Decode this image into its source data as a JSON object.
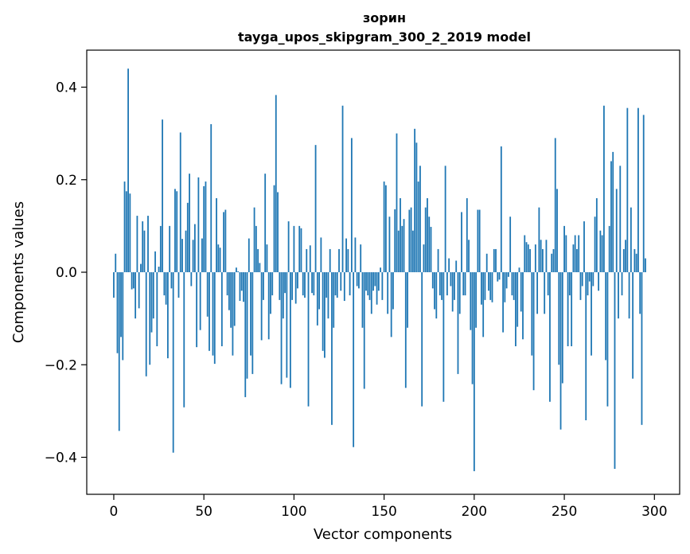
{
  "chart_data": {
    "type": "bar",
    "title_line1": "зорин",
    "title_line2": "tayga_upos_skipgram_300_2_2019 model",
    "xlabel": "Vector components",
    "ylabel": "Components values",
    "xlim": [
      -15,
      314
    ],
    "ylim": [
      -0.48,
      0.48
    ],
    "xticks": [
      0,
      50,
      100,
      150,
      200,
      250,
      300
    ],
    "xtick_labels": [
      "0",
      "50",
      "100",
      "150",
      "200",
      "250",
      "300"
    ],
    "yticks": [
      -0.4,
      -0.2,
      0.0,
      0.2,
      0.4
    ],
    "ytick_labels": [
      "−0.4",
      "−0.2",
      "0.0",
      "0.2",
      "0.4"
    ],
    "bar_color": "#1f77b4",
    "values": [
      -0.055,
      0.04,
      -0.175,
      -0.343,
      -0.14,
      -0.19,
      0.196,
      0.175,
      0.44,
      0.17,
      -0.037,
      -0.035,
      -0.1,
      0.122,
      -0.078,
      0.018,
      0.11,
      0.09,
      -0.225,
      0.122,
      -0.2,
      -0.13,
      -0.1,
      0.045,
      -0.16,
      0.012,
      0.1,
      0.33,
      -0.05,
      -0.07,
      -0.186,
      0.1,
      -0.035,
      -0.39,
      0.18,
      0.175,
      -0.055,
      0.302,
      0.072,
      -0.292,
      0.09,
      0.15,
      0.213,
      -0.03,
      0.07,
      0.104,
      -0.162,
      0.205,
      -0.125,
      0.073,
      0.186,
      0.196,
      -0.096,
      -0.17,
      0.32,
      -0.18,
      -0.198,
      0.16,
      0.06,
      0.053,
      -0.16,
      0.13,
      0.135,
      -0.05,
      -0.082,
      -0.12,
      -0.18,
      -0.116,
      0.01,
      0.002,
      -0.062,
      -0.04,
      -0.064,
      -0.27,
      -0.23,
      0.073,
      -0.18,
      -0.22,
      0.14,
      0.1,
      0.05,
      0.02,
      -0.147,
      -0.06,
      0.213,
      0.06,
      -0.145,
      -0.09,
      -0.05,
      0.188,
      0.383,
      0.173,
      -0.06,
      -0.242,
      -0.1,
      -0.045,
      -0.228,
      0.11,
      -0.25,
      -0.06,
      0.1,
      -0.068,
      -0.035,
      0.1,
      0.095,
      -0.05,
      -0.055,
      0.05,
      -0.29,
      0.058,
      -0.045,
      -0.05,
      0.275,
      -0.115,
      -0.08,
      0.075,
      -0.17,
      -0.185,
      -0.055,
      -0.1,
      0.05,
      -0.33,
      -0.12,
      -0.05,
      -0.055,
      0.05,
      -0.04,
      0.36,
      -0.062,
      0.073,
      0.05,
      -0.05,
      0.29,
      -0.378,
      0.075,
      -0.03,
      -0.035,
      0.06,
      -0.12,
      -0.252,
      -0.04,
      -0.05,
      -0.06,
      -0.09,
      -0.04,
      -0.03,
      -0.07,
      -0.04,
      0.01,
      -0.06,
      0.196,
      0.188,
      -0.09,
      0.12,
      -0.14,
      -0.08,
      0.136,
      0.3,
      0.09,
      0.16,
      0.1,
      0.115,
      -0.25,
      -0.12,
      0.135,
      0.14,
      0.09,
      0.31,
      0.28,
      0.196,
      0.23,
      -0.29,
      0.06,
      0.14,
      0.16,
      0.12,
      0.098,
      -0.035,
      -0.08,
      -0.1,
      0.05,
      -0.05,
      -0.06,
      -0.28,
      0.23,
      -0.05,
      0.03,
      -0.03,
      -0.085,
      -0.06,
      0.025,
      -0.22,
      -0.09,
      0.13,
      -0.05,
      -0.05,
      0.16,
      0.07,
      -0.125,
      -0.242,
      -0.43,
      -0.12,
      0.135,
      0.135,
      -0.07,
      -0.14,
      -0.06,
      0.04,
      -0.04,
      -0.06,
      -0.065,
      0.05,
      0.05,
      -0.02,
      -0.016,
      0.272,
      -0.13,
      -0.065,
      -0.035,
      -0.01,
      0.12,
      -0.05,
      -0.06,
      -0.16,
      -0.118,
      0.01,
      -0.085,
      -0.145,
      0.08,
      0.065,
      0.06,
      0.05,
      -0.18,
      -0.255,
      0.06,
      -0.09,
      0.14,
      0.07,
      0.05,
      -0.09,
      0.07,
      -0.05,
      -0.28,
      0.04,
      0.05,
      0.29,
      0.18,
      -0.2,
      -0.34,
      -0.24,
      0.1,
      0.08,
      -0.16,
      -0.05,
      -0.16,
      0.06,
      0.08,
      0.05,
      0.08,
      -0.06,
      -0.03,
      0.11,
      -0.32,
      -0.05,
      -0.02,
      -0.18,
      -0.03,
      0.12,
      0.16,
      -0.04,
      0.09,
      0.08,
      0.36,
      -0.19,
      -0.29,
      0.1,
      0.24,
      0.26,
      -0.425,
      0.18,
      -0.1,
      0.23,
      -0.05,
      0.05,
      0.07,
      0.355,
      -0.1,
      0.14,
      -0.23,
      0.05,
      0.04,
      0.355,
      -0.09,
      -0.33,
      0.34,
      0.03
    ]
  }
}
